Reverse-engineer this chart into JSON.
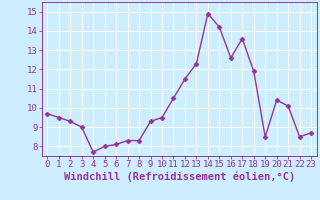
{
  "x": [
    0,
    1,
    2,
    3,
    4,
    5,
    6,
    7,
    8,
    9,
    10,
    11,
    12,
    13,
    14,
    15,
    16,
    17,
    18,
    19,
    20,
    21,
    22,
    23
  ],
  "y": [
    9.7,
    9.5,
    9.3,
    9.0,
    7.7,
    8.0,
    8.1,
    8.3,
    8.3,
    9.3,
    9.5,
    10.5,
    11.5,
    12.3,
    14.9,
    14.2,
    12.6,
    13.6,
    11.9,
    8.5,
    10.4,
    10.1,
    8.5,
    8.7
  ],
  "line_color": "#993399",
  "marker": "D",
  "marker_size": 2.5,
  "bg_color": "#cceeff",
  "grid_color": "#ffffff",
  "xlabel": "Windchill (Refroidissement éolien,°C)",
  "xlim": [
    -0.5,
    23.5
  ],
  "ylim": [
    7.5,
    15.5
  ],
  "yticks": [
    8,
    9,
    10,
    11,
    12,
    13,
    14,
    15
  ],
  "xticks": [
    0,
    1,
    2,
    3,
    4,
    5,
    6,
    7,
    8,
    9,
    10,
    11,
    12,
    13,
    14,
    15,
    16,
    17,
    18,
    19,
    20,
    21,
    22,
    23
  ],
  "tick_label_fontsize": 6.5,
  "xlabel_fontsize": 7.5,
  "line_width": 1.0
}
